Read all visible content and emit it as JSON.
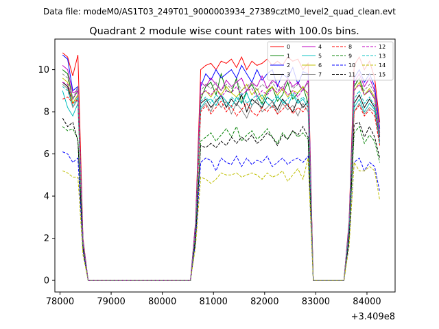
{
  "chart_data": {
    "type": "line",
    "suptitle": "Data file: modeM0/AS1T03_249T01_9000003934_27389cztM0_level2_quad_clean.evt",
    "title": "Quadrant 2 module wise count rates with 100.0s bins.",
    "xlabel": "",
    "ylabel": "",
    "x_offset_label": "+3.409e8",
    "xlim": [
      77900,
      84550
    ],
    "ylim": [
      -0.55,
      11.45
    ],
    "xticks": [
      78000,
      79000,
      80000,
      81000,
      82000,
      83000,
      84000
    ],
    "xtick_labels": [
      "78000",
      "79000",
      "80000",
      "81000",
      "82000",
      "83000",
      "84000"
    ],
    "yticks": [
      0,
      2,
      4,
      6,
      8,
      10
    ],
    "ytick_labels": [
      "0",
      "2",
      "4",
      "6",
      "8",
      "10"
    ],
    "grid": false,
    "legend_position": "top-right",
    "x": [
      78050,
      78150,
      78250,
      78350,
      78450,
      78550,
      78650,
      78750,
      78850,
      78950,
      79050,
      79150,
      79250,
      79350,
      79450,
      79550,
      79650,
      79750,
      79850,
      79950,
      80050,
      80150,
      80250,
      80350,
      80450,
      80550,
      80650,
      80750,
      80850,
      80950,
      81050,
      81150,
      81250,
      81350,
      81450,
      81550,
      81650,
      81750,
      81850,
      81950,
      82050,
      82150,
      82250,
      82350,
      82450,
      82550,
      82650,
      82750,
      82850,
      82950,
      83050,
      83150,
      83250,
      83350,
      83450,
      83550,
      83650,
      83750,
      83850,
      83950,
      84050,
      84150,
      84250
    ],
    "series": [
      {
        "name": "0",
        "color": "#ff0000",
        "dash": false,
        "values": [
          10.8,
          10.6,
          9.7,
          10.7,
          2.0,
          0,
          0,
          0,
          0,
          0,
          0,
          0,
          0,
          0,
          0,
          0,
          0,
          0,
          0,
          0,
          0,
          0,
          0,
          0,
          0,
          0,
          2.8,
          10.0,
          10.2,
          10.3,
          10.0,
          10.4,
          10.3,
          10.5,
          10.1,
          10.6,
          10.0,
          10.4,
          10.2,
          10.3,
          10.5,
          10.2,
          10.4,
          10.2,
          10.6,
          10.4,
          10.5,
          10.0,
          10.3,
          0,
          0,
          0,
          0,
          0,
          0,
          0,
          2.8,
          10.2,
          10.6,
          10.0,
          10.4,
          9.6,
          7.5
        ]
      },
      {
        "name": "1",
        "color": "#008000",
        "dash": false,
        "values": [
          10.0,
          9.8,
          8.6,
          9.0,
          1.8,
          0,
          0,
          0,
          0,
          0,
          0,
          0,
          0,
          0,
          0,
          0,
          0,
          0,
          0,
          0,
          0,
          0,
          0,
          0,
          0,
          0,
          2.5,
          8.6,
          9.2,
          9.4,
          8.8,
          9.8,
          9.0,
          8.9,
          9.6,
          8.4,
          9.0,
          9.3,
          8.8,
          8.4,
          8.9,
          9.2,
          8.5,
          8.8,
          9.4,
          8.6,
          8.9,
          9.2,
          8.4,
          0,
          0,
          0,
          0,
          0,
          0,
          0,
          2.5,
          9.2,
          9.6,
          8.8,
          9.0,
          8.6,
          7.0
        ]
      },
      {
        "name": "2",
        "color": "#0000ff",
        "dash": false,
        "values": [
          10.7,
          10.5,
          9.0,
          9.2,
          1.9,
          0,
          0,
          0,
          0,
          0,
          0,
          0,
          0,
          0,
          0,
          0,
          0,
          0,
          0,
          0,
          0,
          0,
          0,
          0,
          0,
          0,
          2.7,
          9.2,
          9.8,
          9.5,
          10.0,
          9.6,
          9.8,
          10.0,
          9.6,
          10.2,
          9.8,
          9.4,
          10.0,
          9.5,
          9.8,
          10.0,
          9.2,
          9.8,
          9.6,
          10.1,
          9.3,
          9.9,
          9.8,
          0,
          0,
          0,
          0,
          0,
          0,
          0,
          2.7,
          9.6,
          10.0,
          9.4,
          9.8,
          9.2,
          7.2
        ]
      },
      {
        "name": "3",
        "color": "#000000",
        "dash": false,
        "values": [
          9.4,
          9.2,
          8.4,
          8.8,
          1.8,
          0,
          0,
          0,
          0,
          0,
          0,
          0,
          0,
          0,
          0,
          0,
          0,
          0,
          0,
          0,
          0,
          0,
          0,
          0,
          0,
          0,
          2.4,
          8.4,
          8.6,
          8.2,
          8.5,
          8.8,
          8.2,
          8.6,
          8.3,
          8.8,
          8.0,
          8.6,
          8.4,
          8.2,
          8.7,
          8.5,
          8.1,
          8.6,
          8.3,
          8.0,
          8.6,
          8.2,
          8.5,
          0,
          0,
          0,
          0,
          0,
          0,
          0,
          2.4,
          8.4,
          8.8,
          8.2,
          8.6,
          8.2,
          6.8
        ]
      },
      {
        "name": "4",
        "color": "#bf00bf",
        "dash": false,
        "values": [
          10.2,
          10.0,
          8.9,
          9.0,
          1.9,
          0,
          0,
          0,
          0,
          0,
          0,
          0,
          0,
          0,
          0,
          0,
          0,
          0,
          0,
          0,
          0,
          0,
          0,
          0,
          0,
          0,
          2.6,
          9.4,
          9.2,
          9.6,
          9.3,
          9.0,
          9.5,
          9.2,
          9.4,
          9.6,
          9.0,
          9.4,
          9.2,
          9.7,
          9.1,
          9.5,
          9.3,
          9.0,
          9.6,
          9.2,
          9.4,
          9.0,
          9.5,
          0,
          0,
          0,
          0,
          0,
          0,
          0,
          2.6,
          9.4,
          9.8,
          9.2,
          9.6,
          9.0,
          7.0
        ]
      },
      {
        "name": "5",
        "color": "#00bfbf",
        "dash": false,
        "values": [
          9.0,
          8.2,
          7.8,
          8.4,
          1.7,
          0,
          0,
          0,
          0,
          0,
          0,
          0,
          0,
          0,
          0,
          0,
          0,
          0,
          0,
          0,
          0,
          0,
          0,
          0,
          0,
          0,
          2.3,
          8.2,
          8.5,
          8.6,
          8.3,
          8.8,
          8.5,
          8.2,
          8.7,
          8.4,
          8.9,
          8.3,
          8.6,
          8.8,
          8.4,
          8.2,
          8.7,
          8.5,
          8.3,
          8.8,
          8.4,
          8.6,
          8.2,
          0,
          0,
          0,
          0,
          0,
          0,
          0,
          2.3,
          8.2,
          8.6,
          8.0,
          8.4,
          8.1,
          6.5
        ]
      },
      {
        "name": "6",
        "color": "#bfbf00",
        "dash": false,
        "values": [
          9.6,
          9.4,
          8.4,
          8.8,
          1.8,
          0,
          0,
          0,
          0,
          0,
          0,
          0,
          0,
          0,
          0,
          0,
          0,
          0,
          0,
          0,
          0,
          0,
          0,
          0,
          0,
          0,
          2.5,
          8.8,
          9.0,
          8.7,
          9.1,
          8.8,
          9.2,
          8.9,
          8.7,
          9.0,
          9.3,
          8.8,
          9.1,
          8.6,
          9.0,
          9.2,
          8.8,
          9.1,
          8.7,
          9.0,
          8.9,
          9.2,
          8.8,
          0,
          0,
          0,
          0,
          0,
          0,
          0,
          2.5,
          9.0,
          9.4,
          8.8,
          9.1,
          8.7,
          6.9
        ]
      },
      {
        "name": "7",
        "color": "#808080",
        "dash": false,
        "values": [
          9.3,
          9.1,
          8.2,
          8.6,
          1.7,
          0,
          0,
          0,
          0,
          0,
          0,
          0,
          0,
          0,
          0,
          0,
          0,
          0,
          0,
          0,
          0,
          0,
          0,
          0,
          0,
          0,
          2.4,
          8.1,
          8.4,
          8.0,
          8.6,
          8.2,
          8.5,
          7.9,
          8.4,
          8.1,
          7.7,
          8.3,
          8.6,
          8.0,
          8.2,
          8.5,
          7.9,
          8.4,
          8.1,
          8.3,
          7.8,
          8.4,
          8.0,
          0,
          0,
          0,
          0,
          0,
          0,
          0,
          2.4,
          8.0,
          8.4,
          7.9,
          8.2,
          8.0,
          6.6
        ]
      },
      {
        "name": "8",
        "color": "#ff0000",
        "dash": true,
        "values": [
          8.6,
          8.7,
          8.4,
          8.6,
          1.7,
          0,
          0,
          0,
          0,
          0,
          0,
          0,
          0,
          0,
          0,
          0,
          0,
          0,
          0,
          0,
          0,
          0,
          0,
          0,
          0,
          0,
          2.3,
          8.0,
          8.3,
          7.9,
          8.2,
          8.5,
          8.0,
          8.3,
          7.8,
          8.1,
          8.4,
          8.0,
          7.8,
          8.2,
          8.0,
          8.3,
          7.9,
          8.1,
          8.4,
          7.9,
          8.2,
          8.0,
          8.3,
          0,
          0,
          0,
          0,
          0,
          0,
          0,
          2.3,
          8.0,
          8.3,
          7.8,
          8.1,
          7.8,
          6.4
        ]
      },
      {
        "name": "9",
        "color": "#008000",
        "dash": true,
        "values": [
          7.3,
          7.1,
          7.2,
          6.7,
          1.5,
          0,
          0,
          0,
          0,
          0,
          0,
          0,
          0,
          0,
          0,
          0,
          0,
          0,
          0,
          0,
          0,
          0,
          0,
          0,
          0,
          0,
          2.0,
          6.6,
          6.8,
          7.0,
          6.6,
          6.9,
          7.2,
          6.8,
          7.3,
          6.6,
          6.9,
          7.1,
          6.7,
          6.9,
          7.2,
          6.8,
          6.5,
          7.0,
          6.7,
          7.1,
          6.8,
          7.0,
          6.7,
          0,
          0,
          0,
          0,
          0,
          0,
          0,
          2.0,
          7.0,
          7.3,
          6.5,
          6.9,
          6.6,
          5.6
        ]
      },
      {
        "name": "10",
        "color": "#0000ff",
        "dash": true,
        "values": [
          6.1,
          6.0,
          5.6,
          5.8,
          1.4,
          0,
          0,
          0,
          0,
          0,
          0,
          0,
          0,
          0,
          0,
          0,
          0,
          0,
          0,
          0,
          0,
          0,
          0,
          0,
          0,
          0,
          1.8,
          5.6,
          5.8,
          5.7,
          5.2,
          5.8,
          5.6,
          5.5,
          5.9,
          5.4,
          5.8,
          5.5,
          5.7,
          5.6,
          5.9,
          5.4,
          5.6,
          5.8,
          5.5,
          5.7,
          5.8,
          5.6,
          5.9,
          0,
          0,
          0,
          0,
          0,
          0,
          0,
          1.8,
          5.6,
          5.8,
          5.2,
          5.6,
          5.4,
          4.2
        ]
      },
      {
        "name": "11",
        "color": "#000000",
        "dash": true,
        "values": [
          7.7,
          7.3,
          7.5,
          6.6,
          1.5,
          0,
          0,
          0,
          0,
          0,
          0,
          0,
          0,
          0,
          0,
          0,
          0,
          0,
          0,
          0,
          0,
          0,
          0,
          0,
          0,
          0,
          2.0,
          6.4,
          6.3,
          6.5,
          6.3,
          6.6,
          6.4,
          6.8,
          6.5,
          6.8,
          6.6,
          6.9,
          6.5,
          6.7,
          7.0,
          6.8,
          6.4,
          6.9,
          6.7,
          7.1,
          6.9,
          7.3,
          6.8,
          0,
          0,
          0,
          0,
          0,
          0,
          0,
          2.0,
          7.4,
          7.5,
          6.8,
          7.3,
          6.8,
          5.8
        ]
      },
      {
        "name": "12",
        "color": "#bf00bf",
        "dash": true,
        "values": [
          9.4,
          9.3,
          8.6,
          9.0,
          1.8,
          0,
          0,
          0,
          0,
          0,
          0,
          0,
          0,
          0,
          0,
          0,
          0,
          0,
          0,
          0,
          0,
          0,
          0,
          0,
          0,
          0,
          2.5,
          8.8,
          9.0,
          8.8,
          9.1,
          8.7,
          9.0,
          8.9,
          9.2,
          8.8,
          9.0,
          9.1,
          8.7,
          9.0,
          8.8,
          9.1,
          8.9,
          9.2,
          8.8,
          9.0,
          8.7,
          9.1,
          8.9,
          0,
          0,
          0,
          0,
          0,
          0,
          0,
          2.5,
          9.0,
          9.3,
          8.8,
          9.0,
          8.6,
          6.8
        ]
      },
      {
        "name": "13",
        "color": "#00bfbf",
        "dash": true,
        "values": [
          9.2,
          9.0,
          8.3,
          8.7,
          1.8,
          0,
          0,
          0,
          0,
          0,
          0,
          0,
          0,
          0,
          0,
          0,
          0,
          0,
          0,
          0,
          0,
          0,
          0,
          0,
          0,
          0,
          2.4,
          8.5,
          8.7,
          8.4,
          8.8,
          8.6,
          8.3,
          8.7,
          8.5,
          8.9,
          8.4,
          8.6,
          8.8,
          8.3,
          8.7,
          8.5,
          8.8,
          8.4,
          8.6,
          8.9,
          8.5,
          8.7,
          8.4,
          0,
          0,
          0,
          0,
          0,
          0,
          0,
          2.4,
          8.6,
          9.0,
          8.4,
          8.7,
          8.3,
          6.6
        ]
      },
      {
        "name": "14",
        "color": "#bfbf00",
        "dash": true,
        "values": [
          5.2,
          5.1,
          4.9,
          4.9,
          1.2,
          0,
          0,
          0,
          0,
          0,
          0,
          0,
          0,
          0,
          0,
          0,
          0,
          0,
          0,
          0,
          0,
          0,
          0,
          0,
          0,
          0,
          1.6,
          4.9,
          4.8,
          4.6,
          4.8,
          5.1,
          5.0,
          5.0,
          5.1,
          4.9,
          5.0,
          5.1,
          5.0,
          4.8,
          5.1,
          4.9,
          5.0,
          5.2,
          4.7,
          5.0,
          5.3,
          4.8,
          5.8,
          0,
          0,
          0,
          0,
          0,
          0,
          0,
          1.6,
          5.6,
          5.2,
          5.2,
          5.4,
          5.2,
          3.8
        ]
      },
      {
        "name": "15",
        "color": "#808080",
        "dash": true,
        "values": [
          9.8,
          9.6,
          8.6,
          9.2,
          1.9,
          0,
          0,
          0,
          0,
          0,
          0,
          0,
          0,
          0,
          0,
          0,
          0,
          0,
          0,
          0,
          0,
          0,
          0,
          0,
          0,
          0,
          2.6,
          9.0,
          9.3,
          9.1,
          9.4,
          9.0,
          9.3,
          9.1,
          9.5,
          9.0,
          9.2,
          9.4,
          9.0,
          9.3,
          9.1,
          9.4,
          9.0,
          9.2,
          9.5,
          9.1,
          9.3,
          9.0,
          9.4,
          0,
          0,
          0,
          0,
          0,
          0,
          0,
          2.6,
          9.3,
          9.6,
          9.0,
          9.3,
          8.9,
          7.0
        ]
      }
    ]
  }
}
